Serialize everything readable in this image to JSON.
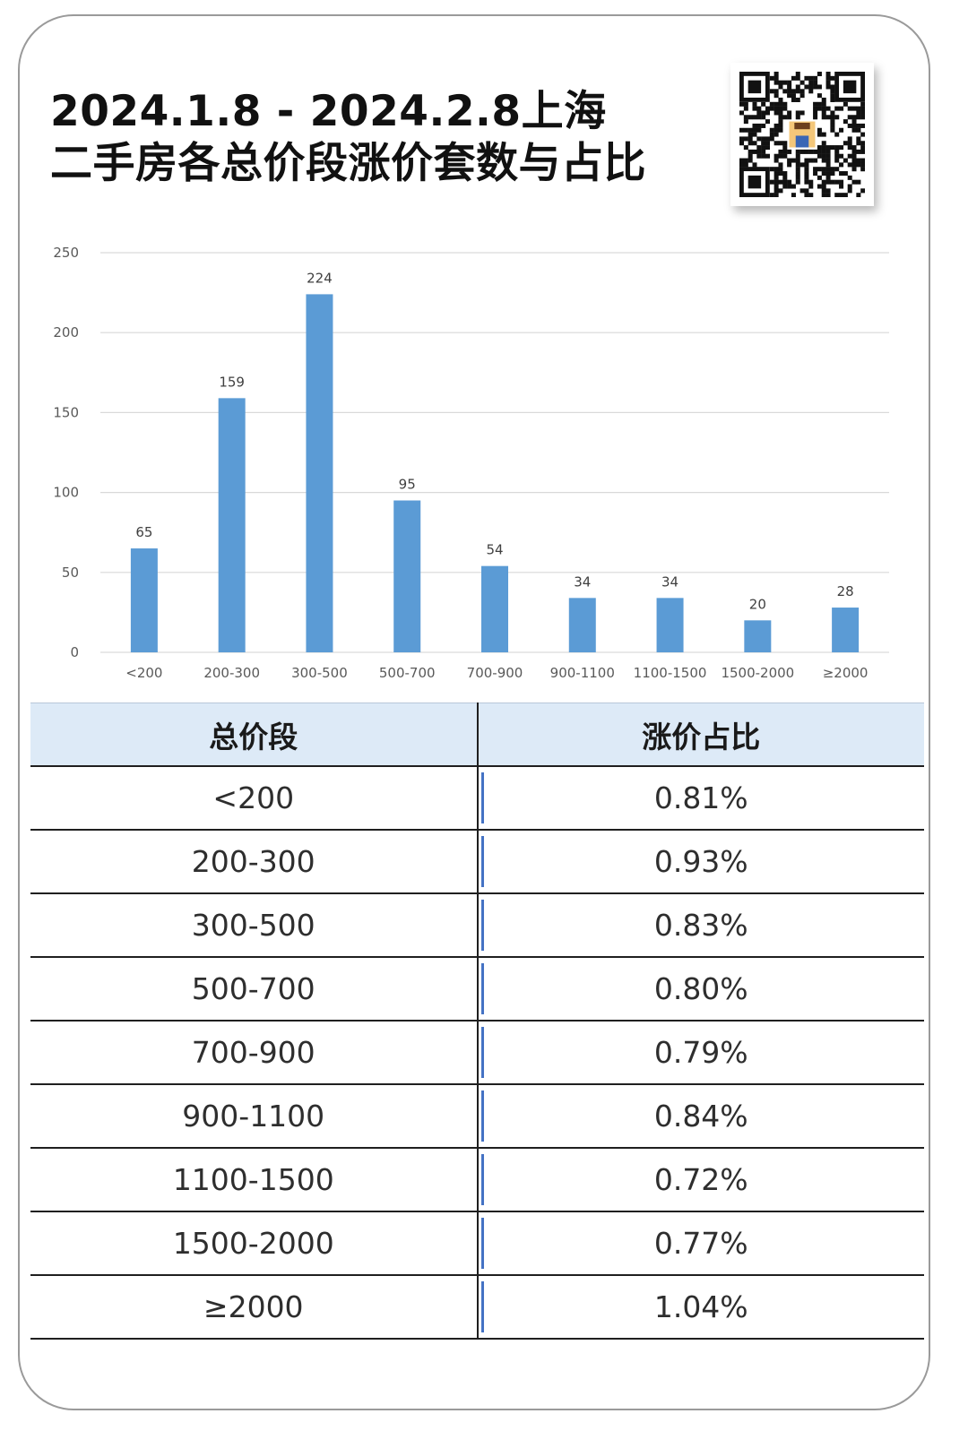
{
  "header": {
    "title_line1": "2024.1.8 - 2024.2.8上海",
    "title_line2": "二手房各总价段涨价套数与占比",
    "qr_icon": "qr-code-icon"
  },
  "colors": {
    "bar": "#5b9bd5",
    "grid": "#d9d9d9",
    "table_header_bg": "#ddeaf7",
    "cell_marker": "#4472c4"
  },
  "chart_data": {
    "type": "bar",
    "title": "",
    "xlabel": "",
    "ylabel": "",
    "categories": [
      "<200",
      "200-300",
      "300-500",
      "500-700",
      "700-900",
      "900-1100",
      "1100-1500",
      "1500-2000",
      "≥2000"
    ],
    "values": [
      65,
      159,
      224,
      95,
      54,
      34,
      34,
      20,
      28
    ],
    "ylim": [
      0,
      250
    ],
    "yticks": [
      0,
      50,
      100,
      150,
      200,
      250
    ],
    "grid": true,
    "data_labels": true
  },
  "table": {
    "headers": [
      "总价段",
      "涨价占比"
    ],
    "rows": [
      [
        "<200",
        "0.81%"
      ],
      [
        "200-300",
        "0.93%"
      ],
      [
        "300-500",
        "0.83%"
      ],
      [
        "500-700",
        "0.80%"
      ],
      [
        "700-900",
        "0.79%"
      ],
      [
        "900-1100",
        "0.84%"
      ],
      [
        "1100-1500",
        "0.72%"
      ],
      [
        "1500-2000",
        "0.77%"
      ],
      [
        "≥2000",
        "1.04%"
      ]
    ]
  }
}
